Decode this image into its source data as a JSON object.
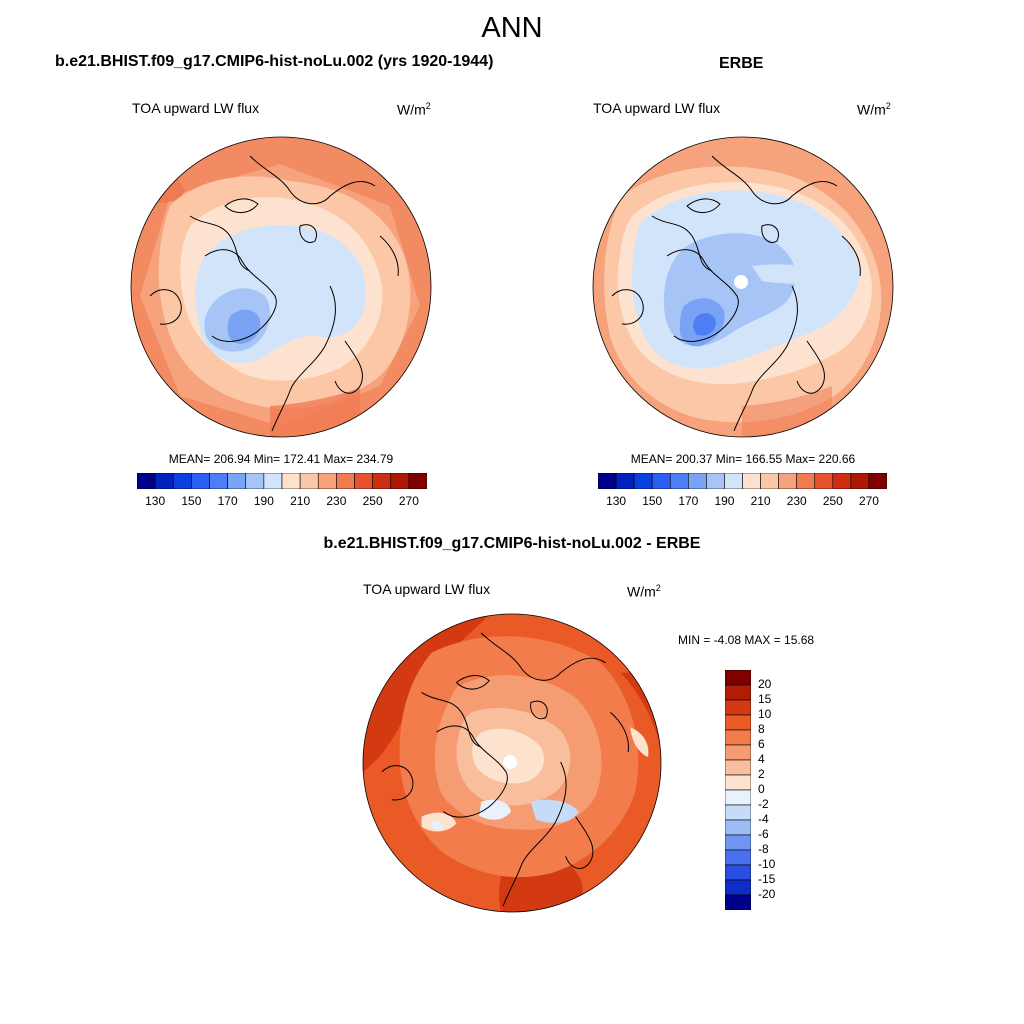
{
  "main_title": "ANN",
  "panels": [
    {
      "title": "b.e21.BHIST.f09_g17.CMIP6-hist-noLu.002 (yrs 1920-1944)",
      "variable": "TOA upward LW flux",
      "units_base": "W/m",
      "units_exp": "2",
      "stats": "MEAN= 206.94  Min= 172.41  Max= 234.79",
      "colorbar_ticks": [
        "130",
        "150",
        "170",
        "190",
        "210",
        "230",
        "250",
        "270"
      ]
    },
    {
      "title": "ERBE",
      "variable": "TOA upward LW flux",
      "units_base": "W/m",
      "units_exp": "2",
      "stats": "MEAN= 200.37  Min= 166.55  Max= 220.66",
      "colorbar_ticks": [
        "130",
        "150",
        "170",
        "190",
        "210",
        "230",
        "250",
        "270"
      ]
    },
    {
      "title": "b.e21.BHIST.f09_g17.CMIP6-hist-noLu.002 - ERBE",
      "variable": "TOA upward LW flux",
      "units_base": "W/m",
      "units_exp": "2",
      "stats": "MIN =  -4.08 MAX =  15.68",
      "colorbar_ticks": [
        "20",
        "15",
        "10",
        "8",
        "6",
        "4",
        "2",
        "0",
        "-2",
        "-4",
        "-6",
        "-8",
        "-10",
        "-15",
        "-20"
      ]
    }
  ],
  "colors": {
    "abs_scale": [
      "#00008b",
      "#0020c0",
      "#0a40e0",
      "#2a5ef5",
      "#4e7ef5",
      "#7aa2f5",
      "#a6c4f5",
      "#d2e4fa",
      "#fde3cf",
      "#fbc7a6",
      "#f6a27c",
      "#f07a52",
      "#e6522e",
      "#cf2c12",
      "#ad1805",
      "#800000"
    ],
    "diff_scale": [
      "#800000",
      "#b01c06",
      "#d43a12",
      "#ea5a26",
      "#f27c4c",
      "#f69c72",
      "#f9be9c",
      "#fde2cd",
      "#e8f2fc",
      "#c6dbf7",
      "#9dbcf5",
      "#7096f2",
      "#4a70ee",
      "#2a4de2",
      "#0f2cc4",
      "#00008b"
    ]
  }
}
